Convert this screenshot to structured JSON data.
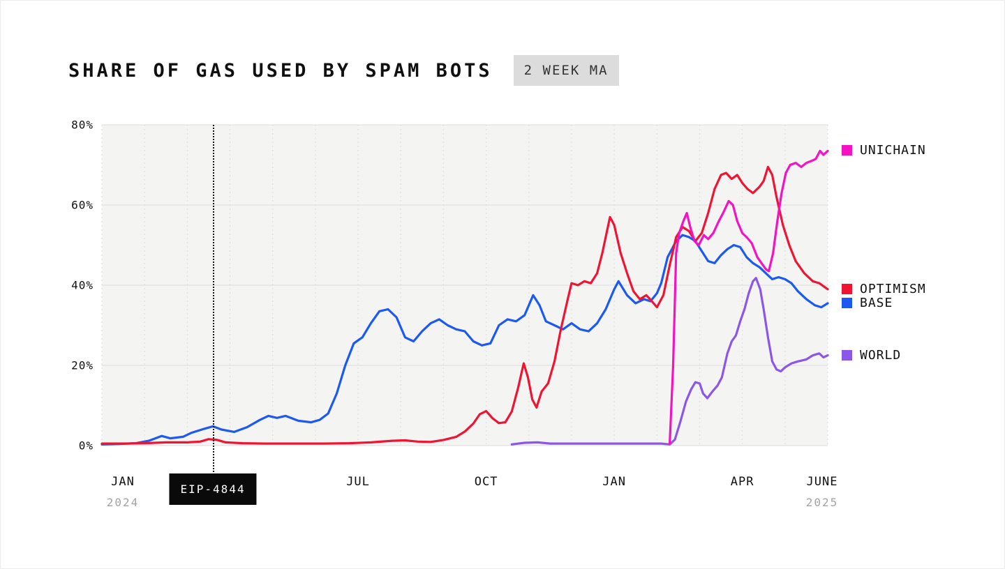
{
  "title": "SHARE OF GAS USED BY SPAM BOTS",
  "badge": "2 WEEK MA",
  "annotation": {
    "label": "EIP-4844",
    "month": 2.6
  },
  "axis": {
    "y_ticks": [
      {
        "label": "80%",
        "value": 80
      },
      {
        "label": "60%",
        "value": 60
      },
      {
        "label": "40%",
        "value": 40
      },
      {
        "label": "20%",
        "value": 20
      },
      {
        "label": "0%",
        "value": 0
      }
    ],
    "x_ticks": [
      {
        "label": "JAN",
        "sub": "2024",
        "month": 0
      },
      {
        "label": "JUL",
        "month": 6
      },
      {
        "label": "OCT",
        "month": 9
      },
      {
        "label": "JAN",
        "month": 12
      },
      {
        "label": "APR",
        "month": 15
      },
      {
        "label": "JUNE",
        "sub": "2025",
        "month": 17
      }
    ]
  },
  "chart_data": {
    "type": "line",
    "title": "SHARE OF GAS USED BY SPAM BOTS (2 WEEK MA)",
    "x_unit": "months since Jan 2024",
    "x_range": [
      0,
      17
    ],
    "ylim": [
      0,
      80
    ],
    "grid": "on",
    "legend_position": "right-of-line-ends",
    "series": [
      {
        "name": "UNICHAIN",
        "color": "#f412c3",
        "points": [
          [
            13.3,
            0.5
          ],
          [
            13.38,
            20
          ],
          [
            13.45,
            48
          ],
          [
            13.52,
            53
          ],
          [
            13.62,
            56
          ],
          [
            13.7,
            58
          ],
          [
            13.78,
            54.5
          ],
          [
            13.88,
            51
          ],
          [
            13.98,
            50
          ],
          [
            14.1,
            52.5
          ],
          [
            14.2,
            51.5
          ],
          [
            14.32,
            53
          ],
          [
            14.45,
            56
          ],
          [
            14.55,
            58
          ],
          [
            14.68,
            61
          ],
          [
            14.78,
            60
          ],
          [
            14.88,
            56
          ],
          [
            15.0,
            53
          ],
          [
            15.1,
            52
          ],
          [
            15.22,
            50.5
          ],
          [
            15.35,
            47
          ],
          [
            15.45,
            45.5
          ],
          [
            15.55,
            44
          ],
          [
            15.62,
            43.5
          ],
          [
            15.72,
            48
          ],
          [
            15.82,
            56
          ],
          [
            15.92,
            63
          ],
          [
            16.02,
            68
          ],
          [
            16.12,
            70
          ],
          [
            16.25,
            70.5
          ],
          [
            16.38,
            69.5
          ],
          [
            16.5,
            70.5
          ],
          [
            16.62,
            71
          ],
          [
            16.72,
            71.5
          ],
          [
            16.82,
            73.5
          ],
          [
            16.9,
            72.5
          ],
          [
            17,
            73.5
          ]
        ]
      },
      {
        "name": "OPTIMISM",
        "color": "#ef1431",
        "points": [
          [
            0,
            0.5
          ],
          [
            0.5,
            0.5
          ],
          [
            1,
            0.6
          ],
          [
            1.5,
            0.8
          ],
          [
            2,
            0.8
          ],
          [
            2.3,
            1.0
          ],
          [
            2.5,
            1.6
          ],
          [
            2.7,
            1.4
          ],
          [
            2.9,
            0.8
          ],
          [
            3.3,
            0.6
          ],
          [
            3.8,
            0.5
          ],
          [
            4.5,
            0.5
          ],
          [
            5.2,
            0.5
          ],
          [
            5.8,
            0.6
          ],
          [
            6.3,
            0.8
          ],
          [
            6.8,
            1.2
          ],
          [
            7.1,
            1.3
          ],
          [
            7.4,
            1.0
          ],
          [
            7.7,
            0.9
          ],
          [
            8.0,
            1.4
          ],
          [
            8.3,
            2.2
          ],
          [
            8.5,
            3.5
          ],
          [
            8.7,
            5.5
          ],
          [
            8.85,
            7.8
          ],
          [
            9.0,
            8.6
          ],
          [
            9.15,
            6.8
          ],
          [
            9.3,
            5.6
          ],
          [
            9.45,
            5.8
          ],
          [
            9.6,
            8.5
          ],
          [
            9.75,
            14.5
          ],
          [
            9.88,
            20.5
          ],
          [
            9.98,
            17
          ],
          [
            10.08,
            11.5
          ],
          [
            10.18,
            9.5
          ],
          [
            10.3,
            13.5
          ],
          [
            10.45,
            15.5
          ],
          [
            10.6,
            21
          ],
          [
            10.75,
            29
          ],
          [
            10.9,
            36
          ],
          [
            11.0,
            40.5
          ],
          [
            11.15,
            40
          ],
          [
            11.3,
            41
          ],
          [
            11.45,
            40.5
          ],
          [
            11.6,
            43
          ],
          [
            11.72,
            48
          ],
          [
            11.82,
            53
          ],
          [
            11.9,
            57
          ],
          [
            12.0,
            55
          ],
          [
            12.15,
            48
          ],
          [
            12.3,
            43
          ],
          [
            12.45,
            38.5
          ],
          [
            12.6,
            36.5
          ],
          [
            12.75,
            37.5
          ],
          [
            12.88,
            36
          ],
          [
            13.0,
            34.5
          ],
          [
            13.15,
            37.5
          ],
          [
            13.3,
            45
          ],
          [
            13.45,
            52
          ],
          [
            13.6,
            54.5
          ],
          [
            13.75,
            53.5
          ],
          [
            13.9,
            51
          ],
          [
            14.05,
            53
          ],
          [
            14.2,
            58
          ],
          [
            14.35,
            64
          ],
          [
            14.5,
            67.5
          ],
          [
            14.62,
            68
          ],
          [
            14.75,
            66.5
          ],
          [
            14.88,
            67.5
          ],
          [
            15.0,
            65.5
          ],
          [
            15.12,
            64
          ],
          [
            15.25,
            63
          ],
          [
            15.4,
            64.5
          ],
          [
            15.5,
            66
          ],
          [
            15.6,
            69.5
          ],
          [
            15.7,
            67.5
          ],
          [
            15.8,
            62
          ],
          [
            15.95,
            55
          ],
          [
            16.1,
            50
          ],
          [
            16.25,
            46
          ],
          [
            16.45,
            43
          ],
          [
            16.65,
            41
          ],
          [
            16.8,
            40.5
          ],
          [
            17,
            39
          ]
        ]
      },
      {
        "name": "BASE",
        "color": "#1c59f2",
        "points": [
          [
            0,
            0.3
          ],
          [
            0.4,
            0.4
          ],
          [
            0.8,
            0.6
          ],
          [
            1.1,
            1.2
          ],
          [
            1.4,
            2.4
          ],
          [
            1.6,
            1.8
          ],
          [
            1.9,
            2.2
          ],
          [
            2.1,
            3.2
          ],
          [
            2.4,
            4.2
          ],
          [
            2.6,
            4.8
          ],
          [
            2.8,
            4.0
          ],
          [
            3.1,
            3.4
          ],
          [
            3.4,
            4.6
          ],
          [
            3.7,
            6.4
          ],
          [
            3.9,
            7.4
          ],
          [
            4.1,
            6.9
          ],
          [
            4.3,
            7.4
          ],
          [
            4.6,
            6.2
          ],
          [
            4.9,
            5.8
          ],
          [
            5.1,
            6.4
          ],
          [
            5.3,
            8.0
          ],
          [
            5.5,
            13
          ],
          [
            5.7,
            20
          ],
          [
            5.9,
            25.5
          ],
          [
            6.1,
            27
          ],
          [
            6.3,
            30.5
          ],
          [
            6.5,
            33.5
          ],
          [
            6.7,
            34
          ],
          [
            6.9,
            32
          ],
          [
            7.1,
            27
          ],
          [
            7.3,
            26
          ],
          [
            7.5,
            28.5
          ],
          [
            7.7,
            30.5
          ],
          [
            7.9,
            31.5
          ],
          [
            8.1,
            30
          ],
          [
            8.3,
            29
          ],
          [
            8.5,
            28.5
          ],
          [
            8.7,
            26
          ],
          [
            8.9,
            25
          ],
          [
            9.1,
            25.5
          ],
          [
            9.3,
            30
          ],
          [
            9.5,
            31.5
          ],
          [
            9.7,
            31
          ],
          [
            9.9,
            32.5
          ],
          [
            10.1,
            37.5
          ],
          [
            10.25,
            35
          ],
          [
            10.4,
            31
          ],
          [
            10.6,
            30
          ],
          [
            10.8,
            29
          ],
          [
            11.0,
            30.5
          ],
          [
            11.2,
            29
          ],
          [
            11.4,
            28.5
          ],
          [
            11.6,
            30.5
          ],
          [
            11.8,
            34
          ],
          [
            12.0,
            39
          ],
          [
            12.1,
            41
          ],
          [
            12.3,
            37.5
          ],
          [
            12.5,
            35.5
          ],
          [
            12.7,
            36.5
          ],
          [
            12.85,
            36
          ],
          [
            13.0,
            38
          ],
          [
            13.1,
            40.5
          ],
          [
            13.25,
            47
          ],
          [
            13.45,
            51
          ],
          [
            13.6,
            52.5
          ],
          [
            13.75,
            52
          ],
          [
            13.9,
            51
          ],
          [
            14.05,
            48.5
          ],
          [
            14.2,
            46
          ],
          [
            14.35,
            45.5
          ],
          [
            14.5,
            47.5
          ],
          [
            14.65,
            49
          ],
          [
            14.8,
            50
          ],
          [
            14.95,
            49.5
          ],
          [
            15.1,
            47
          ],
          [
            15.25,
            45.5
          ],
          [
            15.4,
            44.5
          ],
          [
            15.55,
            43
          ],
          [
            15.7,
            41.5
          ],
          [
            15.85,
            42
          ],
          [
            16.0,
            41.5
          ],
          [
            16.15,
            40.5
          ],
          [
            16.3,
            38.5
          ],
          [
            16.5,
            36.5
          ],
          [
            16.7,
            35
          ],
          [
            16.85,
            34.5
          ],
          [
            17,
            35.5
          ]
        ]
      },
      {
        "name": "WORLD",
        "color": "#8b57e9",
        "points": [
          [
            9.6,
            0.3
          ],
          [
            9.9,
            0.7
          ],
          [
            10.2,
            0.8
          ],
          [
            10.5,
            0.5
          ],
          [
            11.0,
            0.5
          ],
          [
            11.6,
            0.5
          ],
          [
            12.2,
            0.5
          ],
          [
            12.8,
            0.5
          ],
          [
            13.1,
            0.5
          ],
          [
            13.3,
            0.3
          ],
          [
            13.42,
            1.5
          ],
          [
            13.55,
            6
          ],
          [
            13.68,
            11
          ],
          [
            13.8,
            14
          ],
          [
            13.9,
            15.8
          ],
          [
            14.0,
            15.5
          ],
          [
            14.08,
            13
          ],
          [
            14.18,
            11.8
          ],
          [
            14.3,
            13.5
          ],
          [
            14.42,
            15
          ],
          [
            14.52,
            17
          ],
          [
            14.65,
            23
          ],
          [
            14.75,
            26
          ],
          [
            14.85,
            27.5
          ],
          [
            14.95,
            31
          ],
          [
            15.05,
            34
          ],
          [
            15.15,
            38
          ],
          [
            15.25,
            41
          ],
          [
            15.32,
            41.8
          ],
          [
            15.42,
            39
          ],
          [
            15.5,
            34
          ],
          [
            15.6,
            27
          ],
          [
            15.7,
            21
          ],
          [
            15.8,
            19
          ],
          [
            15.9,
            18.5
          ],
          [
            16.0,
            19.5
          ],
          [
            16.15,
            20.5
          ],
          [
            16.3,
            21
          ],
          [
            16.5,
            21.5
          ],
          [
            16.65,
            22.5
          ],
          [
            16.8,
            23
          ],
          [
            16.9,
            22
          ],
          [
            17,
            22.5
          ]
        ]
      }
    ]
  }
}
